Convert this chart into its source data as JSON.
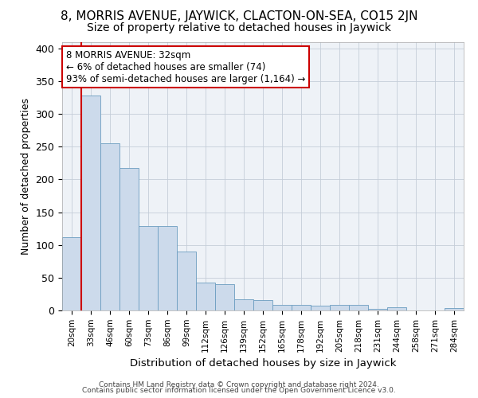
{
  "title": "8, MORRIS AVENUE, JAYWICK, CLACTON-ON-SEA, CO15 2JN",
  "subtitle": "Size of property relative to detached houses in Jaywick",
  "xlabel": "Distribution of detached houses by size in Jaywick",
  "ylabel": "Number of detached properties",
  "categories": [
    "20sqm",
    "33sqm",
    "46sqm",
    "60sqm",
    "73sqm",
    "86sqm",
    "99sqm",
    "112sqm",
    "126sqm",
    "139sqm",
    "152sqm",
    "165sqm",
    "178sqm",
    "192sqm",
    "205sqm",
    "218sqm",
    "231sqm",
    "244sqm",
    "258sqm",
    "271sqm",
    "284sqm"
  ],
  "values": [
    112,
    328,
    255,
    218,
    129,
    129,
    90,
    42,
    40,
    17,
    16,
    8,
    8,
    7,
    9,
    8,
    3,
    5,
    0,
    0,
    4
  ],
  "bar_color": "#ccdaeb",
  "bar_edge_color": "#6b9dc0",
  "grid_color": "#c5cdd8",
  "background_color": "#eef2f7",
  "annotation_text_line1": "8 MORRIS AVENUE: 32sqm",
  "annotation_text_line2": "← 6% of detached houses are smaller (74)",
  "annotation_text_line3": "93% of semi-detached houses are larger (1,164) →",
  "annotation_box_facecolor": "#ffffff",
  "annotation_box_edgecolor": "#cc0000",
  "red_line_x": 1,
  "ylim": [
    0,
    410
  ],
  "yticks": [
    0,
    50,
    100,
    150,
    200,
    250,
    300,
    350,
    400
  ],
  "title_fontsize": 11,
  "subtitle_fontsize": 10,
  "footer1": "Contains HM Land Registry data © Crown copyright and database right 2024.",
  "footer2": "Contains public sector information licensed under the Open Government Licence v3.0."
}
